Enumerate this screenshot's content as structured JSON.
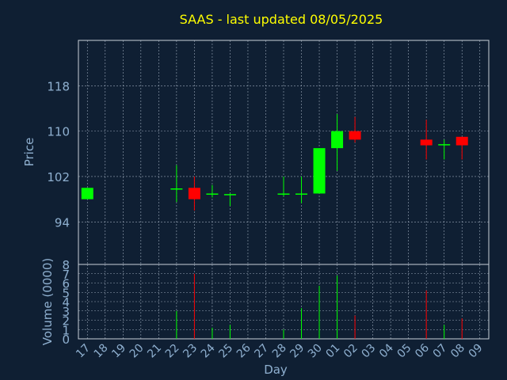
{
  "title": "SAAS - last updated 08/05/2025",
  "colors": {
    "background": "#0f1f33",
    "title": "#ffff00",
    "label": "#8fb0d0",
    "frame": "#ffffff",
    "up": "#00ff00",
    "down": "#ff0000"
  },
  "chart_data": [
    {
      "type": "candlestick",
      "ylabel": "Price",
      "yticks": [
        94,
        102,
        110,
        118
      ],
      "ylim": [
        86.5,
        126
      ],
      "grid": true,
      "x_dates": [
        "17",
        "18",
        "19",
        "20",
        "21",
        "22",
        "23",
        "24",
        "25",
        "26",
        "27",
        "28",
        "29",
        "30",
        "01",
        "02",
        "03",
        "04",
        "05",
        "06",
        "07",
        "08",
        "09"
      ],
      "candles": [
        {
          "x": "17",
          "open": 98.0,
          "high": 100.0,
          "low": 98.0,
          "close": 100.0
        },
        {
          "x": "22",
          "open": 99.7,
          "high": 104.0,
          "low": 97.5,
          "close": 99.9
        },
        {
          "x": "23",
          "open": 100.0,
          "high": 102.0,
          "low": 96.0,
          "close": 98.0
        },
        {
          "x": "24",
          "open": 98.8,
          "high": 100.5,
          "low": 98.3,
          "close": 99.0
        },
        {
          "x": "25",
          "open": 98.9,
          "high": 99.0,
          "low": 96.8,
          "close": 98.9
        },
        {
          "x": "28",
          "open": 98.8,
          "high": 102.0,
          "low": 98.5,
          "close": 99.0
        },
        {
          "x": "29",
          "open": 98.8,
          "high": 102.0,
          "low": 97.3,
          "close": 99.0
        },
        {
          "x": "30",
          "open": 99.0,
          "high": 107.0,
          "low": 99.0,
          "close": 107.0
        },
        {
          "x": "01",
          "open": 107.0,
          "high": 113.0,
          "low": 103.0,
          "close": 110.0
        },
        {
          "x": "02",
          "open": 110.0,
          "high": 112.5,
          "low": 108.0,
          "close": 108.5
        },
        {
          "x": "06",
          "open": 108.5,
          "high": 112.0,
          "low": 105.0,
          "close": 107.5
        },
        {
          "x": "07",
          "open": 107.5,
          "high": 108.5,
          "low": 105.0,
          "close": 107.7
        },
        {
          "x": "08",
          "open": 109.0,
          "high": 109.0,
          "low": 105.0,
          "close": 107.5
        }
      ]
    },
    {
      "type": "bar",
      "ylabel": "Volume (0000)",
      "xlabel": "Day",
      "yticks": [
        0,
        1,
        2,
        3,
        4,
        5,
        6,
        7,
        8
      ],
      "ylim": [
        0,
        8
      ],
      "grid": true,
      "x": [
        "17",
        "18",
        "19",
        "20",
        "21",
        "22",
        "23",
        "24",
        "25",
        "26",
        "27",
        "28",
        "29",
        "30",
        "01",
        "02",
        "03",
        "04",
        "05",
        "06",
        "07",
        "08",
        "09"
      ],
      "bars": [
        {
          "x": "22",
          "value": 3.0,
          "color": "up"
        },
        {
          "x": "23",
          "value": 7.0,
          "color": "down"
        },
        {
          "x": "24",
          "value": 1.2,
          "color": "up"
        },
        {
          "x": "25",
          "value": 1.5,
          "color": "up"
        },
        {
          "x": "28",
          "value": 1.0,
          "color": "up"
        },
        {
          "x": "29",
          "value": 3.3,
          "color": "up"
        },
        {
          "x": "30",
          "value": 5.7,
          "color": "up"
        },
        {
          "x": "01",
          "value": 6.8,
          "color": "up"
        },
        {
          "x": "02",
          "value": 2.5,
          "color": "down"
        },
        {
          "x": "06",
          "value": 5.2,
          "color": "down"
        },
        {
          "x": "07",
          "value": 1.5,
          "color": "up"
        },
        {
          "x": "08",
          "value": 2.2,
          "color": "down"
        }
      ]
    }
  ]
}
